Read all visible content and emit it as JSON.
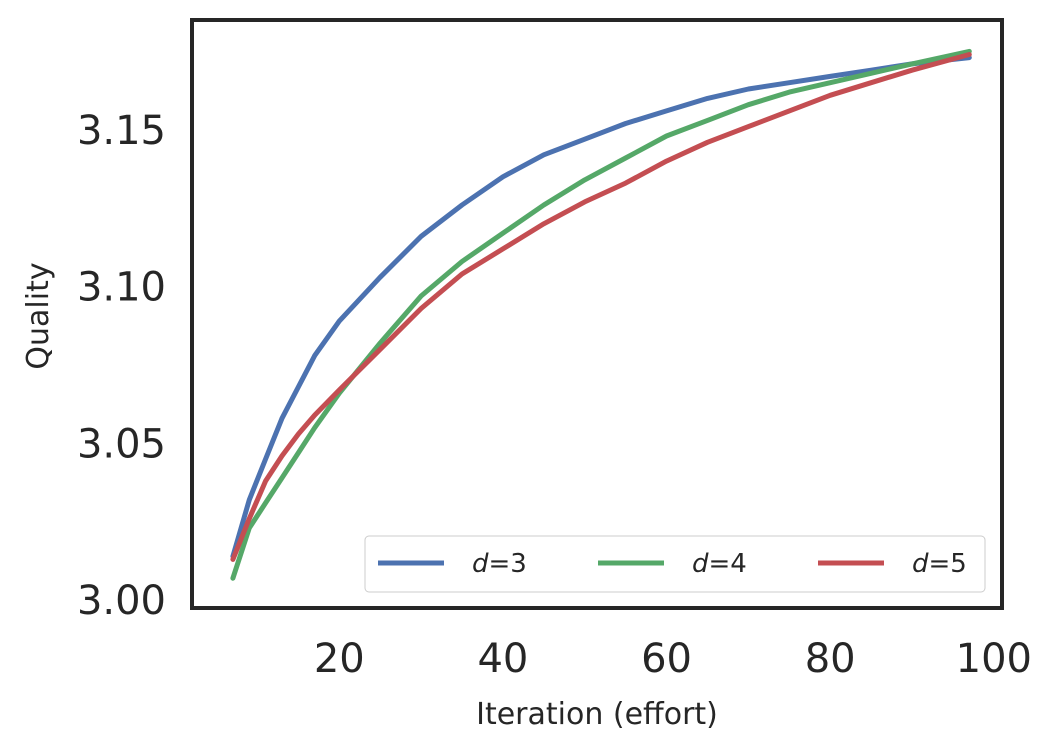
{
  "chart_data": {
    "type": "line",
    "xlabel": "Iteration (effort)",
    "ylabel": "Quality",
    "xlim": [
      2,
      101
    ],
    "ylim": [
      2.9975,
      3.185
    ],
    "xticks": [
      20,
      40,
      60,
      80,
      100
    ],
    "yticks": [
      3.0,
      3.05,
      3.1,
      3.15
    ],
    "xtick_labels": [
      "20",
      "40",
      "60",
      "80",
      "100"
    ],
    "ytick_labels": [
      "3.00",
      "3.05",
      "3.10",
      "3.15"
    ],
    "grid": false,
    "legend": {
      "position": "bottom-right",
      "columns": 3
    },
    "series": [
      {
        "name": "d=3",
        "label_italic": "d",
        "label_rest": "=3",
        "color": "#4c72b0",
        "x": [
          7,
          9,
          11,
          13,
          15,
          17,
          20,
          25,
          30,
          35,
          40,
          45,
          50,
          55,
          60,
          65,
          70,
          75,
          80,
          85,
          90,
          97
        ],
        "y": [
          3.014,
          3.032,
          3.045,
          3.058,
          3.068,
          3.078,
          3.089,
          3.103,
          3.116,
          3.126,
          3.135,
          3.142,
          3.147,
          3.152,
          3.156,
          3.16,
          3.163,
          3.165,
          3.167,
          3.169,
          3.171,
          3.173
        ]
      },
      {
        "name": "d=4",
        "label_italic": "d",
        "label_rest": "=4",
        "color": "#55a868",
        "x": [
          7,
          9,
          11,
          13,
          15,
          17,
          20,
          25,
          30,
          35,
          40,
          45,
          50,
          55,
          60,
          65,
          70,
          75,
          80,
          85,
          90,
          97
        ],
        "y": [
          3.007,
          3.023,
          3.031,
          3.039,
          3.047,
          3.055,
          3.066,
          3.082,
          3.097,
          3.108,
          3.117,
          3.126,
          3.134,
          3.141,
          3.148,
          3.153,
          3.158,
          3.162,
          3.165,
          3.168,
          3.171,
          3.175
        ]
      },
      {
        "name": "d=5",
        "label_italic": "d",
        "label_rest": "=5",
        "color": "#c44e52",
        "x": [
          7,
          9,
          11,
          13,
          15,
          17,
          20,
          25,
          30,
          35,
          40,
          45,
          50,
          55,
          60,
          65,
          70,
          75,
          80,
          85,
          90,
          97
        ],
        "y": [
          3.013,
          3.026,
          3.038,
          3.046,
          3.053,
          3.059,
          3.067,
          3.08,
          3.093,
          3.104,
          3.112,
          3.12,
          3.127,
          3.133,
          3.14,
          3.146,
          3.151,
          3.156,
          3.161,
          3.165,
          3.169,
          3.174
        ]
      }
    ]
  }
}
